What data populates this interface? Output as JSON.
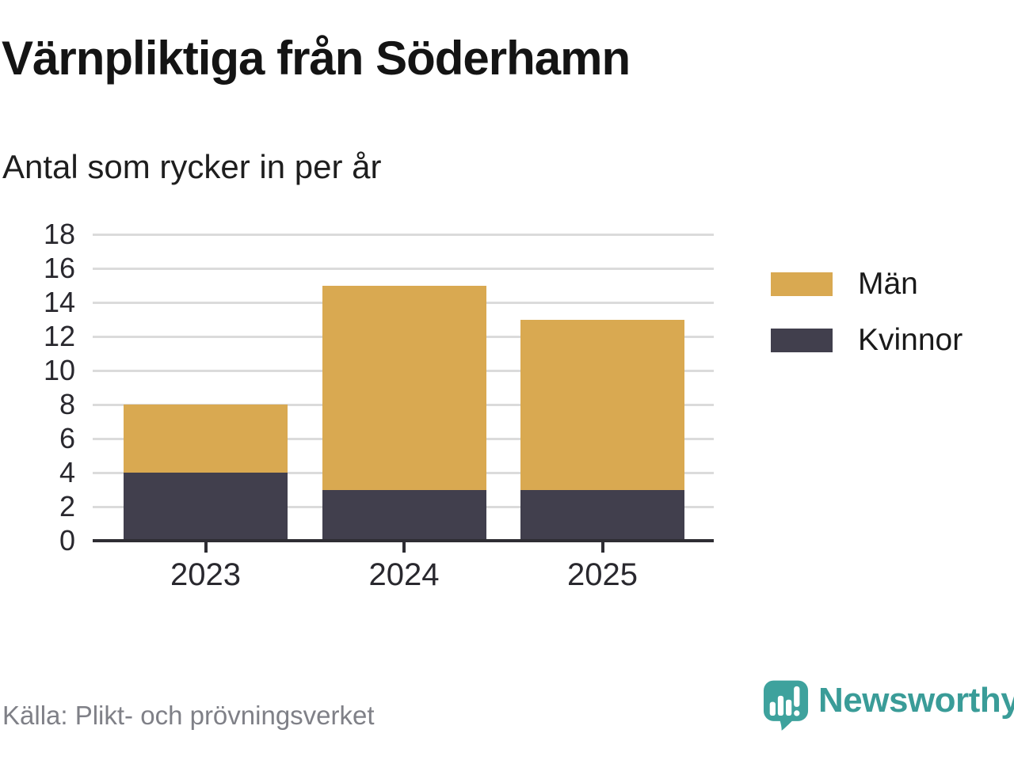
{
  "chart_data": {
    "type": "bar",
    "stacked": true,
    "title": "Värnpliktiga från Söderhamn",
    "subtitle": "Antal som rycker in per år",
    "categories": [
      "2023",
      "2024",
      "2025"
    ],
    "series": [
      {
        "name": "Kvinnor",
        "color": "#413f4d",
        "values": [
          4,
          3,
          3
        ]
      },
      {
        "name": "Män",
        "color": "#d9a951",
        "values": [
          4,
          12,
          10
        ]
      }
    ],
    "totals": [
      8,
      15,
      13
    ],
    "xlabel": "",
    "ylabel": "",
    "ylim": [
      0,
      18
    ],
    "ytick_step": 2,
    "grid": true,
    "legend": [
      "Män",
      "Kvinnor"
    ],
    "legend_position": "right"
  },
  "footer": {
    "source": "Källa: Plikt- och prövningsverket",
    "brand": "Newsworthy"
  },
  "colors": {
    "background": "#ffffff",
    "axis": "#2e2d33",
    "grid": "#dbdbdb",
    "tick_label": "#29282e",
    "title": "#141414",
    "subtitle": "#1e1e1e",
    "source": "#7f8087",
    "brand_teal": "#3ea29d",
    "brand_text": "#3a9c98"
  }
}
